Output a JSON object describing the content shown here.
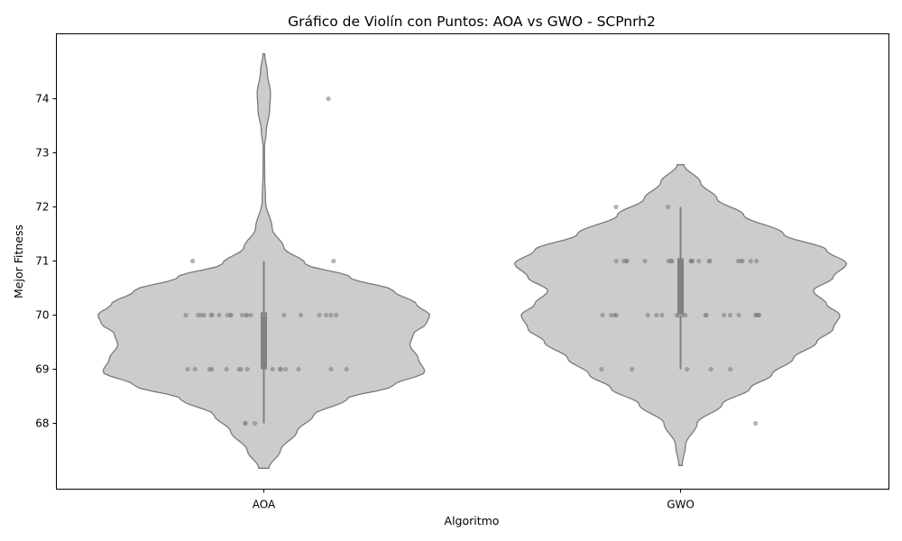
{
  "chart_data": {
    "type": "violin",
    "title": "Gráfico de Violín con Puntos: AOA vs GWO - SCPnrh2",
    "xlabel": "Algoritmo",
    "ylabel": "Mejor Fitness",
    "categories": [
      "AOA",
      "GWO"
    ],
    "ylim": [
      67.2,
      74.8
    ],
    "yticks": [
      "68",
      "69",
      "70",
      "71",
      "72",
      "73",
      "74"
    ],
    "grid": false,
    "colors": {
      "violin_fill": "#cccccc",
      "violin_edge": "#7a7a7a",
      "box": "#808080",
      "median": "#ffffff",
      "points": "#808080"
    },
    "groups": [
      {
        "name": "AOA",
        "values": [
          74,
          71,
          71,
          70,
          70,
          70,
          70,
          70,
          70,
          70,
          70,
          70,
          70,
          70,
          70,
          70,
          70,
          70,
          70,
          70,
          70,
          70,
          70,
          70,
          70,
          69,
          69,
          69,
          69,
          69,
          69,
          69,
          69,
          69,
          69,
          69,
          69,
          69,
          69,
          69,
          68,
          68,
          68
        ],
        "box": {
          "whisker_low": 68,
          "q1": 69,
          "median": 70,
          "q3": 70.05,
          "whisker_high": 71
        },
        "violin_range": [
          67.17,
          74.83
        ],
        "violin_profile": [
          [
            67.17,
            0.03
          ],
          [
            67.5,
            0.1
          ],
          [
            67.85,
            0.2
          ],
          [
            68.15,
            0.3
          ],
          [
            68.45,
            0.5
          ],
          [
            68.7,
            0.78
          ],
          [
            68.95,
            0.97
          ],
          [
            69.2,
            0.93
          ],
          [
            69.45,
            0.88
          ],
          [
            69.65,
            0.9
          ],
          [
            69.85,
            0.98
          ],
          [
            70.0,
            1.0
          ],
          [
            70.2,
            0.92
          ],
          [
            70.45,
            0.78
          ],
          [
            70.7,
            0.52
          ],
          [
            70.95,
            0.25
          ],
          [
            71.25,
            0.12
          ],
          [
            71.6,
            0.05
          ],
          [
            72.1,
            0.01
          ],
          [
            72.6,
            0.005
          ],
          [
            73.1,
            0.004
          ],
          [
            73.4,
            0.015
          ],
          [
            73.8,
            0.035
          ],
          [
            74.1,
            0.04
          ],
          [
            74.5,
            0.02
          ],
          [
            74.83,
            0.005
          ]
        ]
      },
      {
        "name": "GWO",
        "values": [
          72,
          72,
          71,
          71,
          71,
          71,
          71,
          71,
          71,
          71,
          71,
          71,
          71,
          71,
          71,
          71,
          71,
          71,
          71,
          71,
          71,
          70,
          70,
          70,
          70,
          70,
          70,
          70,
          70,
          70,
          70,
          70,
          70,
          70,
          70,
          70,
          70,
          70,
          70,
          70,
          70,
          69,
          69,
          69,
          69,
          69,
          68
        ],
        "box": {
          "whisker_low": 69,
          "q1": 70,
          "median": 70,
          "q3": 71.05,
          "whisker_high": 72
        },
        "violin_range": [
          67.22,
          72.78
        ],
        "violin_profile": [
          [
            67.22,
            0.01
          ],
          [
            67.6,
            0.03
          ],
          [
            68.0,
            0.1
          ],
          [
            68.35,
            0.25
          ],
          [
            68.65,
            0.42
          ],
          [
            68.9,
            0.55
          ],
          [
            69.2,
            0.68
          ],
          [
            69.5,
            0.82
          ],
          [
            69.75,
            0.92
          ],
          [
            70.0,
            0.96
          ],
          [
            70.2,
            0.88
          ],
          [
            70.45,
            0.8
          ],
          [
            70.7,
            0.92
          ],
          [
            70.95,
            1.0
          ],
          [
            71.2,
            0.88
          ],
          [
            71.5,
            0.62
          ],
          [
            71.85,
            0.38
          ],
          [
            72.15,
            0.22
          ],
          [
            72.45,
            0.12
          ],
          [
            72.78,
            0.02
          ]
        ]
      }
    ]
  }
}
